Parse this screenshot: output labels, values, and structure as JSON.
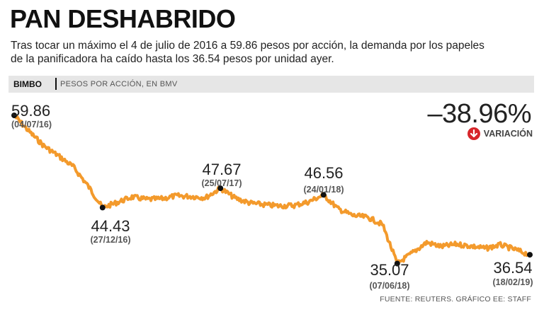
{
  "header": {
    "title": "PAN DESHABRIDO",
    "subtitle_line1": "Tras tocar un máximo el 4 de julio de 2016 a 59.86 pesos por acción, la demanda por los papeles",
    "subtitle_line2": "de la panificadora ha caído hasta los 36.54 pesos por unidad ayer."
  },
  "band": {
    "ticker": "BIMBO",
    "unit": "PESOS POR ACCIÓN, EN BMV"
  },
  "variation": {
    "value": "–38.96%",
    "label": "VARIACIÓN",
    "icon": "arrow-down-icon",
    "color": "#d7262b"
  },
  "source": "FUENTE: REUTERS. GRÁFICO EE: STAFF",
  "chart_data": {
    "type": "line",
    "title": "PAN DESHABRIDO",
    "ylabel": "PESOS POR ACCIÓN, EN BMV",
    "xlabel": "",
    "series_name": "BIMBO",
    "line_color": "#f39a2c",
    "ylim": [
      33,
      62
    ],
    "x_range": [
      "04/07/16",
      "18/02/19"
    ],
    "grid": false,
    "annotations": [
      {
        "value": "59.86",
        "date": "(04/07/16)"
      },
      {
        "value": "44.43",
        "date": "(27/12/16)"
      },
      {
        "value": "47.67",
        "date": "(25/07/17)"
      },
      {
        "value": "46.56",
        "date": "(24/01/18)"
      },
      {
        "value": "35.07",
        "date": "(07/06/18)"
      },
      {
        "value": "36.54",
        "date": "(18/02/19)"
      }
    ],
    "x": [
      "04/07/16",
      "01/08/16",
      "05/09/16",
      "03/10/16",
      "07/11/16",
      "05/12/16",
      "27/12/16",
      "16/01/17",
      "13/02/17",
      "13/03/17",
      "10/04/17",
      "08/05/17",
      "05/06/17",
      "03/07/17",
      "25/07/17",
      "14/08/17",
      "11/09/17",
      "09/10/17",
      "06/11/17",
      "04/12/17",
      "02/01/18",
      "24/01/18",
      "19/02/18",
      "19/03/18",
      "16/04/18",
      "14/05/18",
      "07/06/18",
      "02/07/18",
      "30/07/18",
      "27/08/18",
      "24/09/18",
      "22/10/18",
      "19/11/18",
      "17/12/18",
      "14/01/19",
      "18/02/19"
    ],
    "values": [
      59.86,
      57.2,
      54.8,
      53.1,
      51.3,
      48.1,
      44.43,
      45.3,
      46.2,
      45.8,
      45.9,
      46.4,
      46.3,
      46.1,
      47.67,
      46.0,
      45.2,
      44.9,
      44.7,
      44.8,
      45.4,
      46.56,
      44.2,
      43.1,
      42.8,
      41.6,
      35.07,
      36.8,
      38.6,
      37.9,
      38.3,
      38.0,
      37.6,
      38.2,
      37.4,
      36.54
    ]
  }
}
